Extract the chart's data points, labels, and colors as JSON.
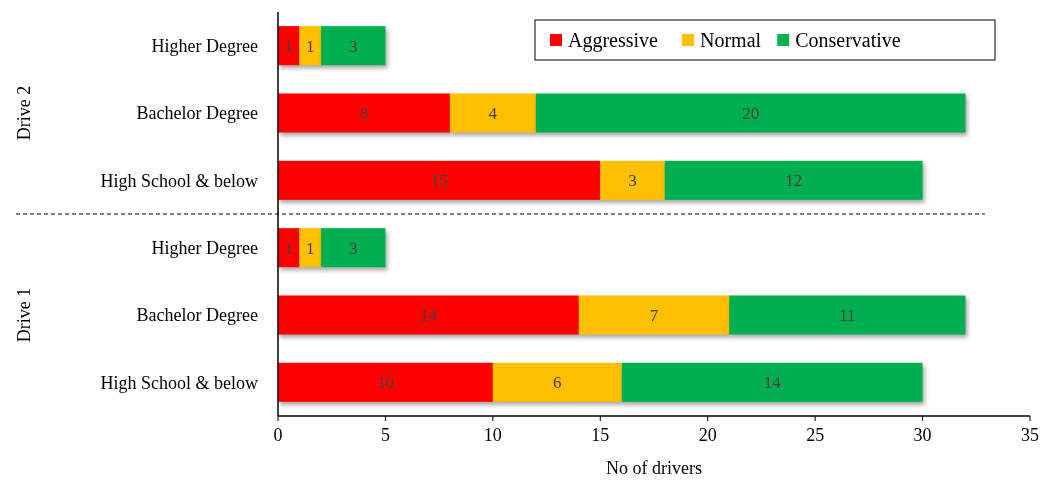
{
  "chart_data": {
    "type": "bar",
    "orientation": "horizontal",
    "stacked": true,
    "categories": [
      "Higher Degree",
      "Bachelor Degree",
      "High School & below",
      "Higher Degree",
      "Bachelor Degree",
      "High School & below"
    ],
    "series": [
      {
        "name": "Aggressive",
        "color": "#ff0000",
        "values": [
          1,
          8,
          15,
          1,
          14,
          10
        ]
      },
      {
        "name": "Normal",
        "color": "#ffc000",
        "values": [
          1,
          4,
          3,
          1,
          7,
          6
        ]
      },
      {
        "name": "Conservative",
        "color": "#00b050",
        "values": [
          3,
          20,
          12,
          3,
          11,
          14
        ]
      }
    ],
    "xlim": [
      0,
      35
    ],
    "xticks": [
      0,
      5,
      10,
      15,
      20,
      25,
      30,
      35
    ],
    "xlabel": "No of drivers",
    "annotations": [
      "Drive 2",
      "Drive 1"
    ],
    "data_labels": true,
    "grid": false,
    "legend": "top right"
  }
}
